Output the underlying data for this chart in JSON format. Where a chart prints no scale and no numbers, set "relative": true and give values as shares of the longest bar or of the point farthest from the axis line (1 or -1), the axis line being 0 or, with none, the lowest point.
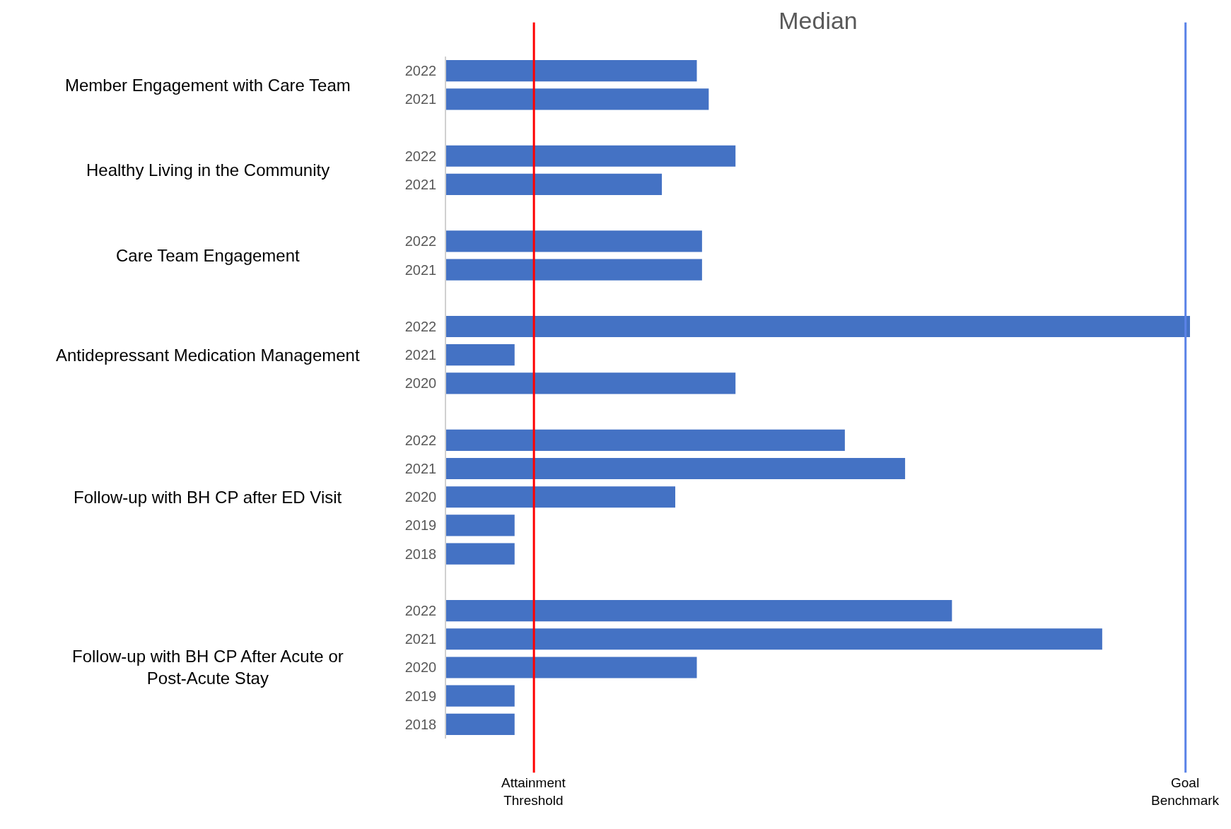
{
  "chart_data": {
    "type": "bar",
    "orientation": "horizontal",
    "relative": true,
    "title": "Median",
    "categories": [
      "2022",
      "2021",
      null,
      "2022",
      "2021",
      null,
      "2022",
      "2021",
      null,
      "2022",
      "2021",
      "2020",
      null,
      "2022",
      "2021",
      "2020",
      "2019",
      "2018",
      null,
      "2022",
      "2021",
      "2020",
      "2019",
      "2018"
    ],
    "values": [
      0.337,
      0.353,
      null,
      0.389,
      0.29,
      null,
      0.344,
      0.344,
      null,
      1,
      0.092,
      0.389,
      null,
      0.536,
      0.617,
      0.308,
      0.092,
      0.092,
      null,
      0.68,
      0.882,
      0.337,
      0.092,
      0.092
    ],
    "color": "#4472c4",
    "annotations": [
      "Member Engagement with Care Team",
      "Healthy Living in the Community",
      "Care Team Engagement",
      "Antidepressant Medication Management",
      "Follow-up with BH CP after ED Visit",
      "Follow-up with BH CP After Acute or\nPost-Acute Stay"
    ],
    "ref_lines": [
      {
        "axis": "x",
        "value": 0.118,
        "label": "Attainment Threshold",
        "color": "#ff0000"
      },
      {
        "axis": "x",
        "value": 0.994,
        "label": "Goal Benchmark",
        "color": "#5b83e8"
      }
    ],
    "grid": false
  }
}
